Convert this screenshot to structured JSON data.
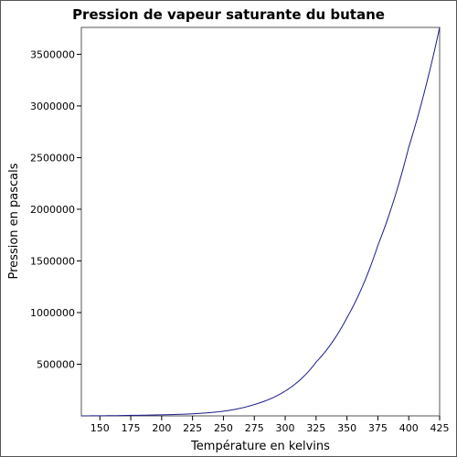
{
  "chart_data": {
    "type": "line",
    "title": "Pression de vapeur saturante du butane",
    "xlabel": "Température en kelvins",
    "ylabel": "Pression en pascals",
    "xlim": [
      135,
      425
    ],
    "ylim": [
      0,
      3760000
    ],
    "x_ticks": [
      150,
      175,
      200,
      225,
      250,
      275,
      300,
      325,
      350,
      375,
      400,
      425
    ],
    "y_ticks": [
      500000,
      1000000,
      1500000,
      2000000,
      2500000,
      3000000,
      3500000
    ],
    "grid": false,
    "series": [
      {
        "color": "#1a1a8c",
        "x": [
          135,
          150,
          175,
          200,
          225,
          250,
          275,
          300,
          325,
          350,
          375,
          400,
          425
        ],
        "y": [
          300,
          1200,
          5000,
          10000,
          20000,
          45000,
          110000,
          240000,
          520000,
          950000,
          1650000,
          2600000,
          3760000
        ]
      }
    ]
  }
}
